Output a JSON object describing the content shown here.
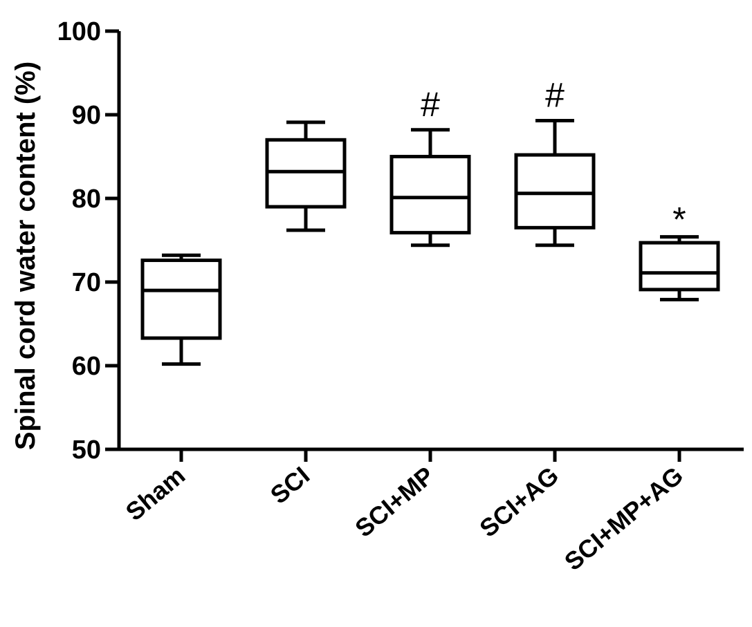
{
  "chart_data": {
    "type": "boxplot",
    "ylabel": "Spinal cord water content (%)",
    "xlabel": "",
    "ylim": [
      50,
      100
    ],
    "yticks": [
      50,
      60,
      70,
      80,
      90,
      100
    ],
    "grid": false,
    "categories": [
      "Sham",
      "SCI",
      "SCI+MP",
      "SCI+AG",
      "SCI+MP+AG"
    ],
    "boxes": [
      {
        "category": "Sham",
        "min": 60.2,
        "q1": 63.3,
        "median": 69.0,
        "q3": 72.6,
        "max": 73.2,
        "annotation": ""
      },
      {
        "category": "SCI",
        "min": 76.2,
        "q1": 79.0,
        "median": 83.2,
        "q3": 87.0,
        "max": 89.1,
        "annotation": ""
      },
      {
        "category": "SCI+MP",
        "min": 74.4,
        "q1": 75.9,
        "median": 80.1,
        "q3": 85.0,
        "max": 88.2,
        "annotation": "#"
      },
      {
        "category": "SCI+AG",
        "min": 74.4,
        "q1": 76.5,
        "median": 80.6,
        "q3": 85.2,
        "max": 89.3,
        "annotation": "#"
      },
      {
        "category": "SCI+MP+AG",
        "min": 67.9,
        "q1": 69.1,
        "median": 71.1,
        "q3": 74.7,
        "max": 75.4,
        "annotation": "*"
      }
    ],
    "colors": {
      "stroke": "#000000",
      "fill": "#ffffff"
    }
  }
}
